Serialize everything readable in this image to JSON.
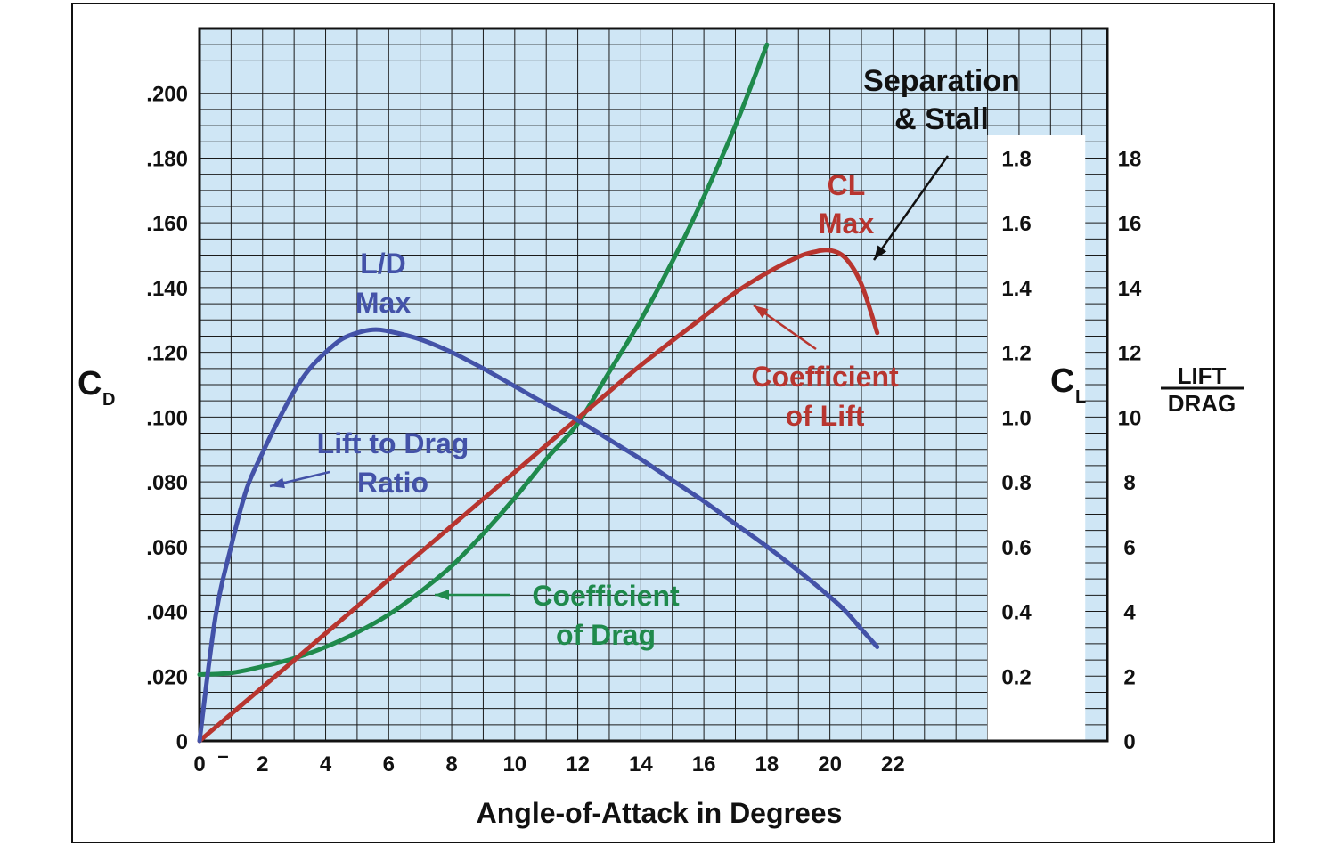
{
  "colors": {
    "plot_bg": "#cfe6f5",
    "grid": "#1a1a1a",
    "drag": "#1f8a4c",
    "lift": "#b8352f",
    "ld": "#4352a8",
    "text": "#111111",
    "panel": "#ffffff"
  },
  "chart_data": {
    "type": "line",
    "title": "",
    "xlabel": "Angle-of-Attack in Degrees",
    "ylabel_left": {
      "main": "C",
      "sub": "D"
    },
    "ylabel_cl": {
      "main": "C",
      "sub": "L"
    },
    "ylabel_ld": {
      "top": "LIFT",
      "bottom": "DRAG"
    },
    "x_ticks": [
      "0",
      "2",
      "4",
      "6",
      "8",
      "10",
      "12",
      "14",
      "16",
      "18",
      "20",
      "22"
    ],
    "x_zero_mark": "–",
    "cd_ticks": [
      "0",
      ".020",
      ".040",
      ".060",
      ".080",
      ".100",
      ".120",
      ".140",
      ".160",
      ".180",
      ".200"
    ],
    "cl_ticks": [
      "0.2",
      "0.4",
      "0.6",
      "0.8",
      "1.0",
      "1.2",
      "1.4",
      "1.6",
      "1.8"
    ],
    "ld_ticks": [
      "0",
      "2",
      "4",
      "6",
      "8",
      "10",
      "12",
      "14",
      "16",
      "18"
    ],
    "xlim": [
      0,
      28.8
    ],
    "cd_lim": [
      0,
      0.22
    ],
    "cl_lim": [
      0,
      2.2
    ],
    "ld_lim": [
      0,
      22
    ],
    "grid": true,
    "series": [
      {
        "name": "Coefficient of Drag",
        "axis": "cd",
        "color": "#1f8a4c",
        "x": [
          0,
          1,
          2,
          3,
          4,
          5,
          6,
          7,
          8,
          9,
          10,
          11,
          12,
          13,
          14,
          15,
          16,
          17,
          18
        ],
        "y": [
          0.0205,
          0.021,
          0.023,
          0.0255,
          0.029,
          0.0335,
          0.039,
          0.046,
          0.054,
          0.064,
          0.075,
          0.087,
          0.098,
          0.114,
          0.13,
          0.148,
          0.168,
          0.19,
          0.215
        ]
      },
      {
        "name": "Coefficient of Lift",
        "axis": "cl",
        "color": "#b8352f",
        "x": [
          0,
          2,
          4,
          6,
          8,
          10,
          12,
          14,
          16,
          17,
          18,
          19,
          19.5,
          20,
          20.5,
          21,
          21.5
        ],
        "y": [
          0,
          0.166,
          0.332,
          0.498,
          0.664,
          0.83,
          0.996,
          1.16,
          1.31,
          1.385,
          1.445,
          1.495,
          1.51,
          1.515,
          1.49,
          1.41,
          1.26
        ]
      },
      {
        "name": "Lift to Drag Ratio",
        "axis": "ld",
        "color": "#4352a8",
        "x": [
          0,
          0.5,
          1,
          1.5,
          2,
          2.5,
          3,
          3.5,
          4,
          4.5,
          5,
          5.5,
          6,
          7,
          8,
          9,
          10,
          11,
          12,
          13,
          14,
          15,
          16,
          17,
          18,
          19,
          20,
          20.5,
          21,
          21.5
        ],
        "y": [
          0,
          3.8,
          6.0,
          7.8,
          8.9,
          9.9,
          10.8,
          11.5,
          12.0,
          12.4,
          12.6,
          12.7,
          12.65,
          12.4,
          12.0,
          11.5,
          10.95,
          10.4,
          9.9,
          9.3,
          8.7,
          8.05,
          7.4,
          6.7,
          6.0,
          5.25,
          4.45,
          4.0,
          3.45,
          2.9
        ]
      }
    ],
    "annotations": {
      "separation": [
        "Separation",
        "& Stall"
      ],
      "cl_max": [
        "CL",
        "Max"
      ],
      "ld_max": [
        "L/D",
        "Max"
      ],
      "coef_lift": [
        "Coefficient",
        "of Lift"
      ],
      "ld_ratio": [
        "Lift to Drag",
        "Ratio"
      ],
      "coef_drag": [
        "Coefficient",
        "of Drag"
      ]
    }
  }
}
